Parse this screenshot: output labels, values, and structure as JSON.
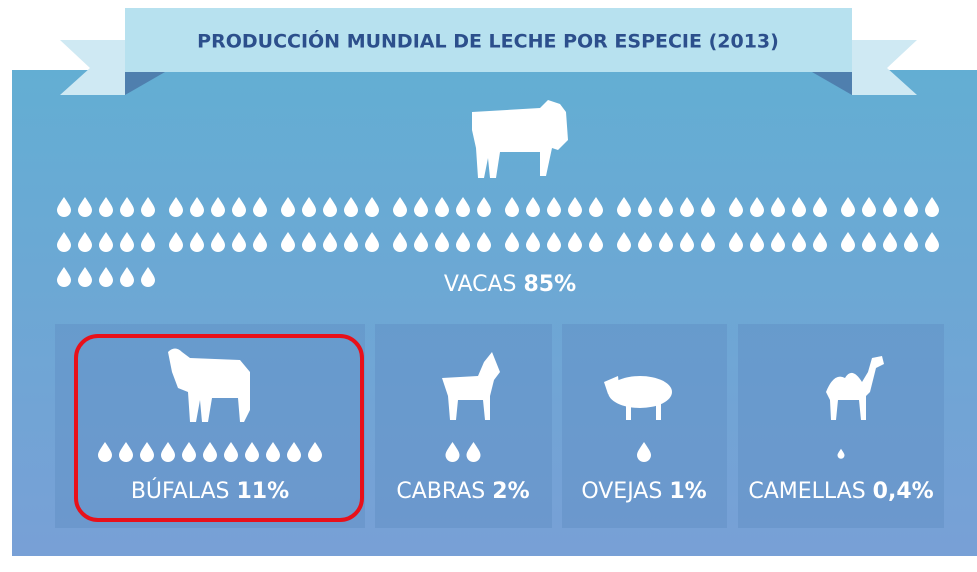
{
  "title": "PRODUCCIÓN MUNDIAL DE LECHE POR ESPECIE (2013)",
  "species": [
    {
      "name": "VACAS",
      "percent": 85,
      "percent_label": "85%"
    },
    {
      "name": "BÚFALAS",
      "percent": 11,
      "percent_label": "11%"
    },
    {
      "name": "CABRAS",
      "percent": 2,
      "percent_label": "2%"
    },
    {
      "name": "OVEJAS",
      "percent": 1,
      "percent_label": "1%"
    },
    {
      "name": "CAMELLAS",
      "percent": 0.4,
      "percent_label": "0,4%"
    }
  ]
}
